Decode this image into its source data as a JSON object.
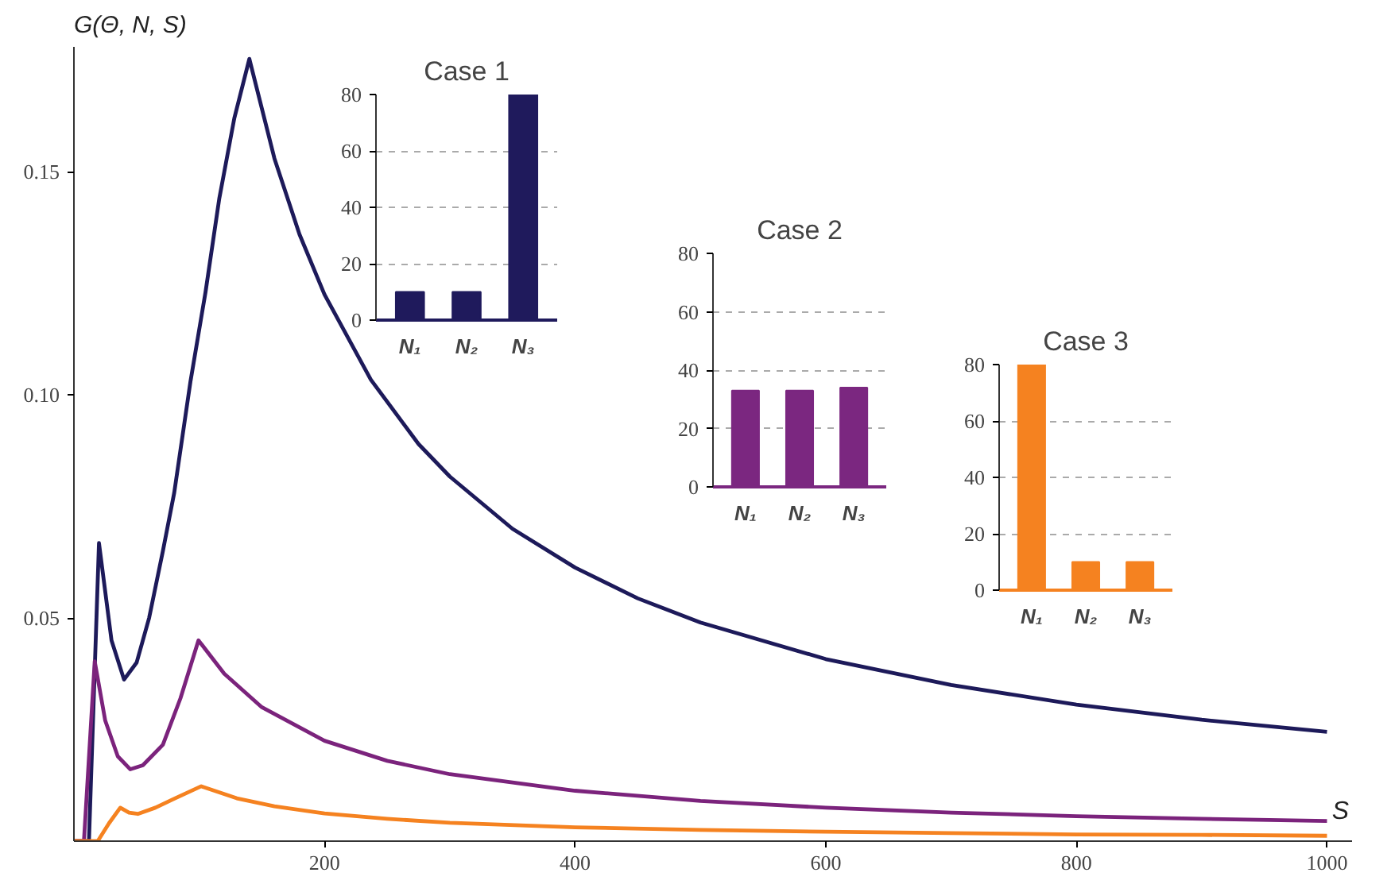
{
  "chart_data": [
    {
      "type": "line",
      "xlabel": "S",
      "ylabel": "G(Θ, N, S)",
      "xlim": [
        0,
        1020
      ],
      "ylim": [
        0,
        0.178
      ],
      "xticks": [
        200,
        400,
        600,
        800,
        1000
      ],
      "yticks": [
        0.05,
        {
          "value": 0.1,
          "label": "0.10"
        },
        0.15
      ],
      "grid": false,
      "series": [
        {
          "color": "#1d1a5a",
          "x": [
            0,
            12,
            20,
            30,
            40,
            50,
            60,
            71,
            80,
            93,
            105,
            116,
            128,
            140,
            160,
            180,
            200,
            237,
            275,
            300,
            350,
            400,
            450,
            500,
            600,
            700,
            800,
            900,
            1000
          ],
          "values": [
            0,
            0,
            0.0668,
            0.045,
            0.0362,
            0.04,
            0.05,
            0.065,
            0.078,
            0.103,
            0.123,
            0.144,
            0.162,
            0.1753,
            0.153,
            0.136,
            0.1225,
            0.1034,
            0.089,
            0.0817,
            0.07,
            0.0613,
            0.0544,
            0.049,
            0.0408,
            0.035,
            0.0306,
            0.0272,
            0.0245
          ]
        },
        {
          "color": "#7b237c",
          "x": [
            0,
            8,
            16.6,
            25,
            35,
            45,
            55,
            71,
            85,
            99.4,
            120,
            150,
            200,
            250,
            300,
            400,
            500,
            600,
            700,
            800,
            900,
            1000
          ],
          "values": [
            0,
            0,
            0.0403,
            0.027,
            0.019,
            0.0161,
            0.017,
            0.0216,
            0.032,
            0.045,
            0.0375,
            0.03,
            0.0225,
            0.018,
            0.015,
            0.0113,
            0.009,
            0.0075,
            0.0064,
            0.0056,
            0.005,
            0.0045
          ]
        },
        {
          "color": "#f58220",
          "x": [
            0,
            19,
            28,
            37,
            44,
            51,
            65,
            80,
            101.6,
            130,
            160,
            200,
            250,
            300,
            400,
            500,
            600,
            700,
            800,
            900,
            1000
          ],
          "values": [
            0,
            0,
            0.004,
            0.0075,
            0.0064,
            0.0061,
            0.0075,
            0.0095,
            0.0123,
            0.0096,
            0.0078,
            0.0062,
            0.005,
            0.0041,
            0.0031,
            0.0025,
            0.0021,
            0.0018,
            0.0015,
            0.0014,
            0.0012
          ]
        }
      ]
    },
    {
      "type": "bar",
      "title": "Case 1",
      "categories": [
        "N₁",
        "N₂",
        "N₃"
      ],
      "values": [
        10,
        10,
        80
      ],
      "color": "#1f1a5c",
      "ylim": [
        0,
        80
      ],
      "yticks": [
        0,
        20,
        40,
        60,
        80
      ],
      "grid": "y"
    },
    {
      "type": "bar",
      "title": "Case 2",
      "categories": [
        "N₁",
        "N₂",
        "N₃"
      ],
      "values": [
        33,
        33,
        34
      ],
      "color": "#7b2780",
      "ylim": [
        0,
        80
      ],
      "yticks": [
        0,
        20,
        40,
        60,
        80
      ],
      "grid": "y"
    },
    {
      "type": "bar",
      "title": "Case 3",
      "categories": [
        "N₁",
        "N₂",
        "N₃"
      ],
      "values": [
        80,
        10,
        10
      ],
      "color": "#f58220",
      "ylim": [
        0,
        80
      ],
      "yticks": [
        0,
        20,
        40,
        60,
        80
      ],
      "grid": "y"
    }
  ]
}
